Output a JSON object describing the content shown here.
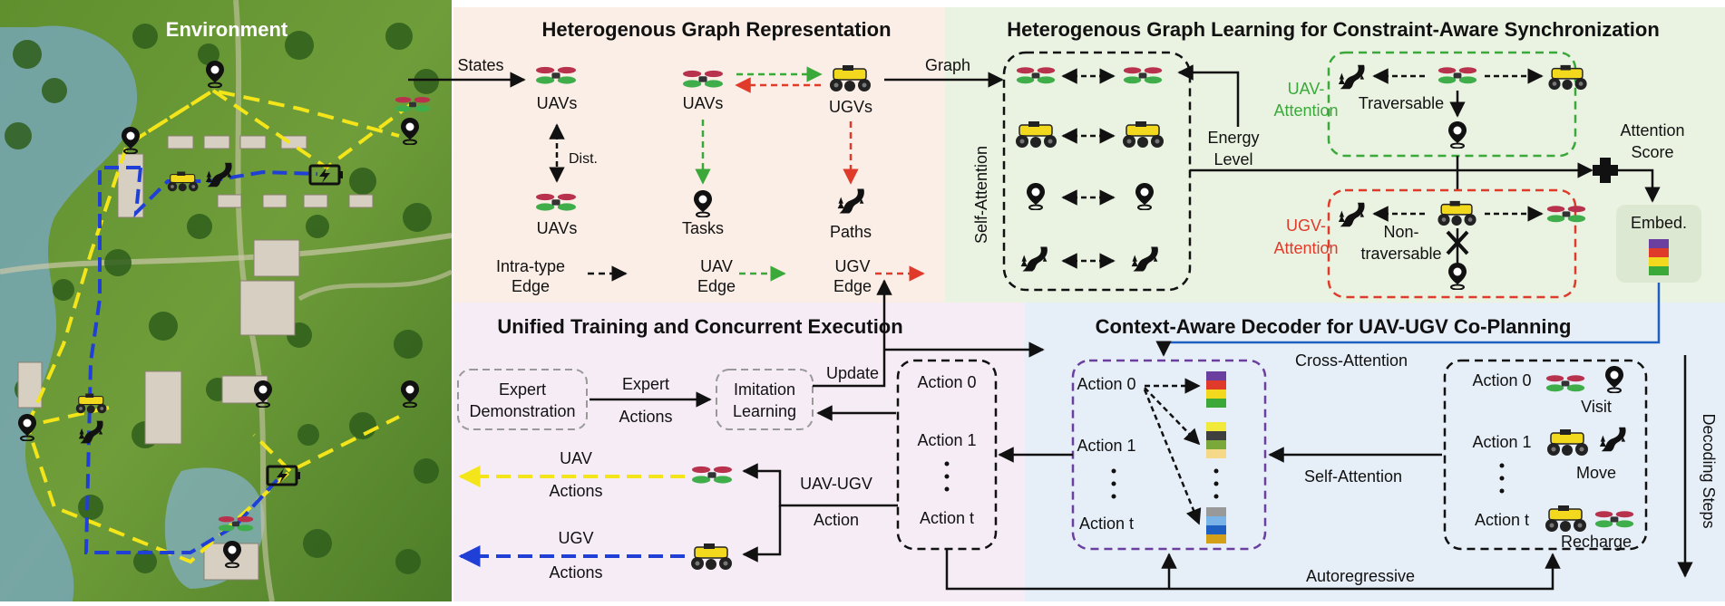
{
  "environment": {
    "title": "Environment"
  },
  "graph_repr": {
    "title": "Heterogenous Graph Representation",
    "states": "States",
    "graph": "Graph",
    "uavs": "UAVs",
    "ugvs": "UGVs",
    "dist": "Dist.",
    "tasks": "Tasks",
    "paths": "Paths",
    "intra_type_1": "Intra-type",
    "intra_type_2": "Edge",
    "uav_edge_1": "UAV",
    "uav_edge_2": "Edge",
    "ugv_edge_1": "UGV",
    "ugv_edge_2": "Edge"
  },
  "graph_learning": {
    "title": "Heterogenous Graph Learning for Constraint-Aware Synchronization",
    "self_attention": "Self-Attention",
    "energy": "Energy",
    "level": "Level",
    "uav_attention_1": "UAV-",
    "uav_attention_2": "Attention",
    "ugv_attention_1": "UGV-",
    "ugv_attention_2": "Attention",
    "traversable": "Traversable",
    "non_1": "Non-",
    "non_2": "traversable",
    "attention_score_1": "Attention",
    "attention_score_2": "Score",
    "embed": "Embed."
  },
  "training": {
    "title": "Unified Training and Concurrent Execution",
    "expert_1": "Expert",
    "expert_2": "Demonstration",
    "expert_actions_1": "Expert",
    "expert_actions_2": "Actions",
    "imitation_1": "Imitation",
    "imitation_2": "Learning",
    "update": "Update",
    "uav_actions_1": "UAV",
    "uav_actions_2": "Actions",
    "ugv_actions_1": "UGV",
    "ugv_actions_2": "Actions",
    "joint_1": "UAV-UGV",
    "joint_2": "Action",
    "action_0": "Action 0",
    "action_1": "Action 1",
    "action_t": "Action t"
  },
  "decoder": {
    "title": "Context-Aware Decoder for UAV-UGV Co-Planning",
    "cross_attention": "Cross-Attention",
    "self_attention": "Self-Attention",
    "autoregressive": "Autoregressive",
    "decoding_steps": "Decoding Steps",
    "action_0": "Action 0",
    "action_1": "Action 1",
    "action_t": "Action t",
    "visit": "Visit",
    "move": "Move",
    "recharge": "Recharge"
  },
  "colors": {
    "green_edge": "#3aa93a",
    "red_edge": "#e03a2a",
    "uav_route": "#f4e51a",
    "ugv_route": "#1f3fd6",
    "panel_pink": "#fbeee6",
    "panel_green": "#eaf3e2",
    "panel_lavender": "#f6ecf6",
    "panel_blue": "#e6eef7"
  }
}
